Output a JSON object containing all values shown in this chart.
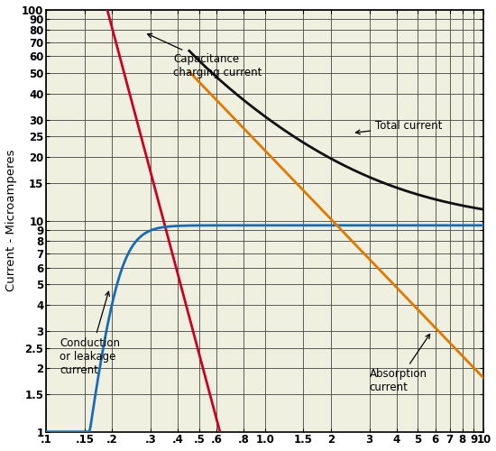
{
  "ylabel": "Current - Microamperes",
  "xlim": [
    0.1,
    10
  ],
  "ylim": [
    1,
    100
  ],
  "x_ticks": [
    0.1,
    0.15,
    0.2,
    0.3,
    0.4,
    0.5,
    0.6,
    0.8,
    1.0,
    1.5,
    2.0,
    3.0,
    4.0,
    5.0,
    6.0,
    7.0,
    8.0,
    9.0,
    10.0
  ],
  "x_tick_labels": [
    ".1",
    ".15",
    ".2",
    ".3",
    ".4",
    ".5",
    ".6",
    ".8",
    "1.0",
    "1.5",
    "2",
    "3",
    "4",
    "5",
    "6",
    "7",
    "8",
    "9",
    "10"
  ],
  "y_ticks": [
    1,
    1.5,
    2,
    2.5,
    3,
    4,
    5,
    6,
    7,
    8,
    9,
    10,
    15,
    20,
    25,
    30,
    40,
    50,
    60,
    70,
    80,
    90,
    100
  ],
  "y_tick_labels": [
    "1",
    "1.5",
    "2",
    "2.5",
    "3",
    "4",
    "5",
    "6",
    "7",
    "8",
    "9",
    "10",
    "15",
    "20",
    "25",
    "30",
    "40",
    "50",
    "60",
    "70",
    "80",
    "90",
    "100"
  ],
  "background_color": "#f0f0e0",
  "grid_color": "#444444",
  "curve_capacitance_color": "#cc0020",
  "curve_leakage_color": "#1a6bb5",
  "curve_absorption_color": "#e07800",
  "curve_total_color": "#111111",
  "annotation_capacitance": "Capacitance\ncharging current",
  "annotation_leakage": "Conduction\nor leakage\ncurrent",
  "annotation_absorption": "Absorption\ncurrent",
  "annotation_total": "Total current",
  "cap_A": 0.006,
  "cap_b": 4.5,
  "leak_L": 9.5,
  "leak_k": 8.0,
  "leak_t0": 0.05,
  "abs_B": 18.0,
  "abs_c": 1.05
}
